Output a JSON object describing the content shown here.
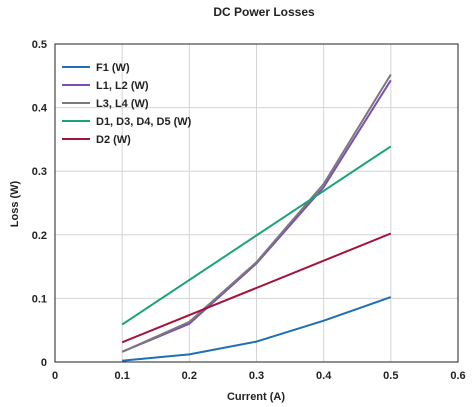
{
  "chart_data": {
    "type": "line",
    "title": "DC Power Losses",
    "xlabel": "Current (A)",
    "ylabel": "Loss (W)",
    "xlim": [
      0,
      0.6
    ],
    "ylim": [
      0,
      0.5
    ],
    "x_ticks": [
      0,
      0.1,
      0.2,
      0.3,
      0.4,
      0.5,
      0.6
    ],
    "x_tick_labels": [
      "0",
      "0.1",
      "0.2",
      "0.3",
      "0.4",
      "0.5",
      "0.6"
    ],
    "y_ticks": [
      0,
      0.1,
      0.2,
      0.3,
      0.4,
      0.5
    ],
    "y_tick_labels": [
      "0",
      "0.1",
      "0.2",
      "0.3",
      "0.4",
      "0.5"
    ],
    "grid": true,
    "legend_position": "top-left",
    "series": [
      {
        "name": "F1 (W)",
        "color": "#1f6fb5",
        "x": [
          0.1,
          0.2,
          0.3,
          0.4,
          0.5
        ],
        "y": [
          0.002,
          0.012,
          0.032,
          0.065,
          0.102
        ]
      },
      {
        "name": "L1, L2 (W)",
        "color": "#7d4fb3",
        "x": [
          0.1,
          0.2,
          0.3,
          0.4,
          0.5
        ],
        "y": [
          0.016,
          0.06,
          0.155,
          0.275,
          0.443
        ]
      },
      {
        "name": "L3, L4 (W)",
        "color": "#7a7a7a",
        "x": [
          0.1,
          0.2,
          0.3,
          0.4,
          0.5
        ],
        "y": [
          0.016,
          0.063,
          0.157,
          0.28,
          0.452
        ]
      },
      {
        "name": "D1, D3, D4, D5 (W)",
        "color": "#1aa37a",
        "x": [
          0.1,
          0.5
        ],
        "y": [
          0.059,
          0.339
        ]
      },
      {
        "name": "D2 (W)",
        "color": "#a3143a",
        "x": [
          0.1,
          0.5
        ],
        "y": [
          0.031,
          0.202
        ]
      }
    ]
  }
}
